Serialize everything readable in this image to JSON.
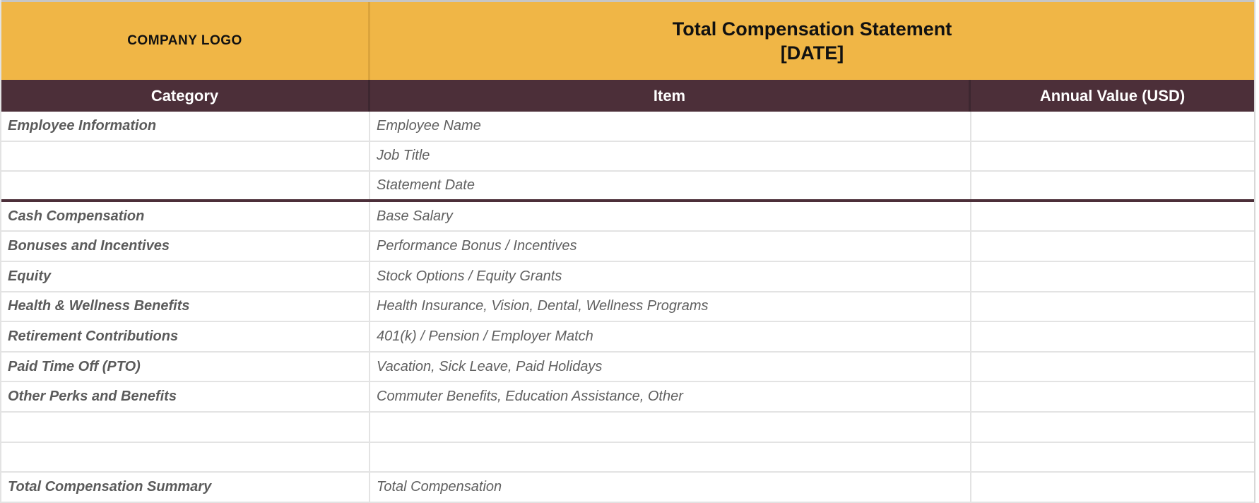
{
  "banner": {
    "company_logo": "COMPANY LOGO",
    "title": "Total Compensation Statement",
    "date_placeholder": "[DATE]"
  },
  "columns": {
    "category": "Category",
    "item": "Item",
    "value": "Annual Value (USD)"
  },
  "rows": [
    {
      "category": "Employee Information",
      "item": "Employee Name",
      "value": ""
    },
    {
      "category": "",
      "item": "Job Title",
      "value": ""
    },
    {
      "category": "",
      "item": "Statement Date",
      "value": ""
    },
    {
      "category": "Cash Compensation",
      "item": "Base Salary",
      "value": ""
    },
    {
      "category": "Bonuses and Incentives",
      "item": "Performance Bonus / Incentives",
      "value": ""
    },
    {
      "category": "Equity",
      "item": "Stock Options / Equity Grants",
      "value": ""
    },
    {
      "category": "Health & Wellness Benefits",
      "item": "Health Insurance, Vision, Dental, Wellness Programs",
      "value": ""
    },
    {
      "category": "Retirement Contributions",
      "item": "401(k) / Pension / Employer Match",
      "value": ""
    },
    {
      "category": "Paid Time Off (PTO)",
      "item": "Vacation, Sick Leave, Paid Holidays",
      "value": ""
    },
    {
      "category": "Other Perks and Benefits",
      "item": "Commuter Benefits, Education Assistance, Other",
      "value": ""
    },
    {
      "category": "",
      "item": "",
      "value": ""
    },
    {
      "category": "",
      "item": "",
      "value": ""
    },
    {
      "category": "Total Compensation Summary",
      "item": "Total Compensation",
      "value": ""
    }
  ],
  "colors": {
    "banner_background": "#F0B646",
    "header_background": "#4C2F39",
    "grid_line": "#E3E3E3",
    "section_divider": "#4C2F39",
    "body_text": "#5B5B5B"
  }
}
